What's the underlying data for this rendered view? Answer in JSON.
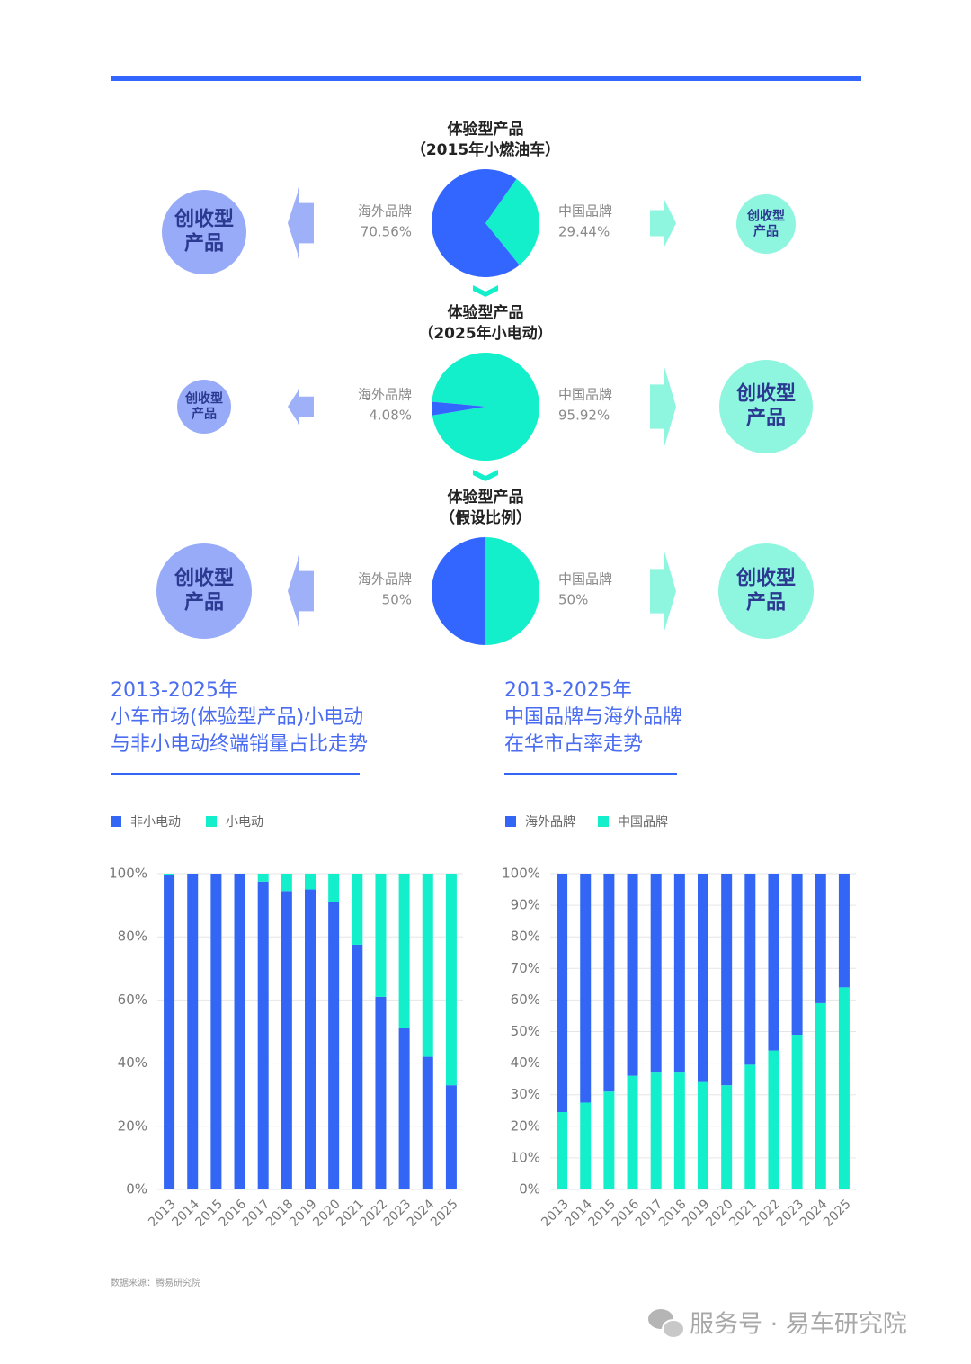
{
  "chart_data": [
    {
      "type": "pie",
      "title": "体验型产品",
      "subtitle": "（2015年小燃油车）",
      "categories": [
        "海外品牌",
        "中国品牌"
      ],
      "values": [
        70.56,
        29.44
      ],
      "value_labels": [
        "70.56%",
        "29.44%"
      ],
      "colors": [
        "#3366ff",
        "#14efcb"
      ],
      "annotations": [
        [
          "创收型",
          "产品"
        ],
        [
          "创收型",
          "产品"
        ]
      ]
    },
    {
      "type": "pie",
      "title": "体验型产品",
      "subtitle": "（2025年小电动）",
      "categories": [
        "海外品牌",
        "中国品牌"
      ],
      "values": [
        4.08,
        95.92
      ],
      "value_labels": [
        "4.08%",
        "95.92%"
      ],
      "colors": [
        "#3366ff",
        "#14efcb"
      ],
      "annotations": [
        [
          "创收型",
          "产品"
        ],
        [
          "创收型",
          "产品"
        ]
      ]
    },
    {
      "type": "pie",
      "title": "体验型产品",
      "subtitle": "（假设比例）",
      "categories": [
        "海外品牌",
        "中国品牌"
      ],
      "values": [
        50,
        50
      ],
      "value_labels": [
        "50%",
        "50%"
      ],
      "colors": [
        "#3366ff",
        "#14efcb"
      ],
      "annotations": [
        [
          "创收型",
          "产品"
        ],
        [
          "创收型",
          "产品"
        ]
      ]
    },
    {
      "type": "bar",
      "stacked": true,
      "title": [
        "2013-2025年",
        "小车市场(体验型产品)小电动",
        "与非小电动终端销量占比走势"
      ],
      "categories": [
        "2013",
        "2014",
        "2015",
        "2016",
        "2017",
        "2018",
        "2019",
        "2020",
        "2021",
        "2022",
        "2023",
        "2024",
        "2025"
      ],
      "series": [
        {
          "name": "非小电动",
          "color": "#3366f5",
          "values": [
            99.5,
            100,
            100,
            100,
            97.5,
            94.5,
            95,
            91,
            77.5,
            61,
            51,
            42,
            33
          ]
        },
        {
          "name": "小电动",
          "color": "#14efcb",
          "values": [
            0.5,
            0,
            0,
            0,
            2.5,
            5.5,
            5,
            9,
            22.5,
            39,
            49,
            58,
            67
          ]
        }
      ],
      "ylim": [
        0,
        100
      ],
      "yticks": [
        {
          "value": 0,
          "label": "0%"
        },
        {
          "value": 20,
          "label": "20%"
        },
        {
          "value": 40,
          "label": "40%"
        },
        {
          "value": 60,
          "label": "60%"
        },
        {
          "value": 80,
          "label": "80%"
        },
        {
          "value": 100,
          "label": "100%"
        }
      ],
      "grid": true,
      "legend": "top-left"
    },
    {
      "type": "bar",
      "stacked": true,
      "stack_order": "reversed",
      "title": [
        "2013-2025年",
        "中国品牌与海外品牌",
        "在华市占率走势"
      ],
      "categories": [
        "2013",
        "2014",
        "2015",
        "2016",
        "2017",
        "2018",
        "2019",
        "2020",
        "2021",
        "2022",
        "2023",
        "2024",
        "2025"
      ],
      "series": [
        {
          "name": "海外品牌",
          "color": "#3366f5",
          "values": [
            75.5,
            72.5,
            69,
            64,
            63,
            63,
            66,
            67,
            60.5,
            56,
            51,
            41,
            36
          ]
        },
        {
          "name": "中国品牌",
          "color": "#14efcb",
          "values": [
            24.5,
            27.5,
            31,
            36,
            37,
            37,
            34,
            33,
            39.5,
            44,
            49,
            59,
            64
          ]
        }
      ],
      "ylim": [
        0,
        100
      ],
      "yticks": [
        {
          "value": 0,
          "label": "0%"
        },
        {
          "value": 10,
          "label": "10%"
        },
        {
          "value": 20,
          "label": "20%"
        },
        {
          "value": 30,
          "label": "30%"
        },
        {
          "value": 40,
          "label": "40%"
        },
        {
          "value": 50,
          "label": "50%"
        },
        {
          "value": 60,
          "label": "60%"
        },
        {
          "value": 70,
          "label": "70%"
        },
        {
          "value": 80,
          "label": "80%"
        },
        {
          "value": 90,
          "label": "90%"
        },
        {
          "value": 100,
          "label": "100%"
        }
      ],
      "grid": true,
      "legend": "top-left"
    }
  ],
  "footer": {
    "source": "数据来源：腾易研究院",
    "watermark": "服务号 · 易车研究院"
  }
}
